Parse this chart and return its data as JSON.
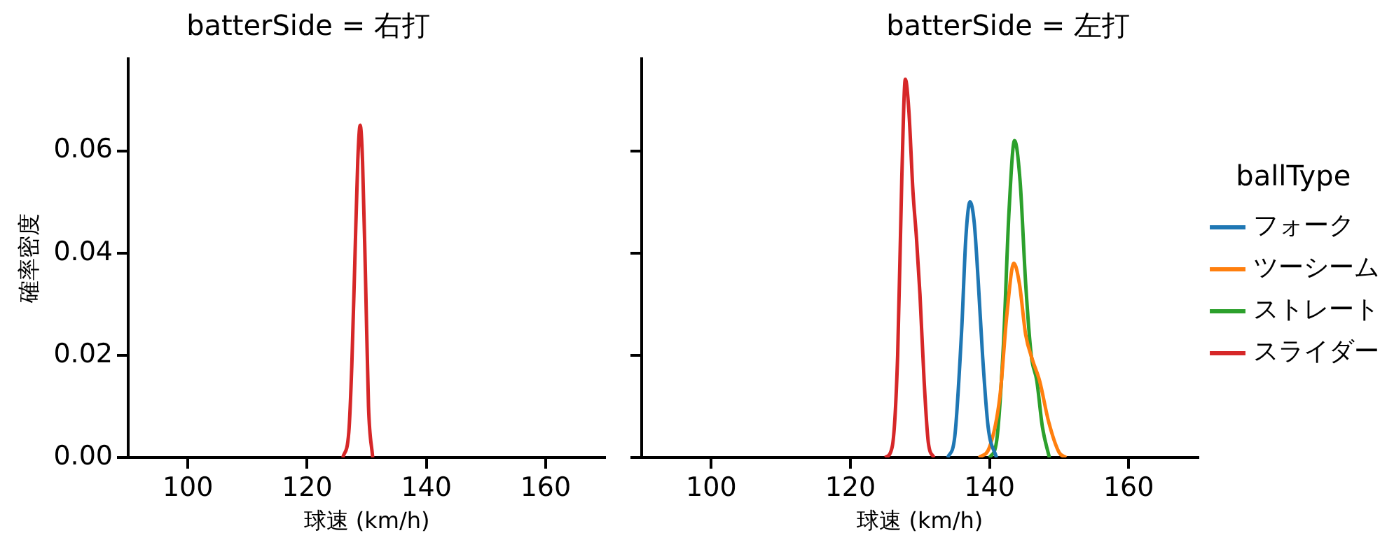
{
  "chart_data": [
    {
      "type": "line",
      "title": "batterSide = 右打",
      "xlabel": "球速 (km/h)",
      "ylabel": "確率密度",
      "xlim": [
        90,
        170
      ],
      "xticks": [
        100,
        120,
        140,
        160
      ],
      "ylim": [
        0,
        0.078
      ],
      "yticks": [
        {
          "value": 0,
          "label": "0.00"
        },
        {
          "value": 0.02,
          "label": "0.02"
        },
        {
          "value": 0.04,
          "label": "0.04"
        },
        {
          "value": 0.06,
          "label": "0.06"
        }
      ],
      "grid": false,
      "legend": false,
      "marker": "none",
      "series": [
        {
          "color": "#d62728",
          "x": [
            126,
            127,
            127.5,
            128,
            128.5,
            128.9,
            129.3,
            129.8,
            130.3,
            131
          ],
          "values": [
            0,
            0.005,
            0.018,
            0.038,
            0.058,
            0.065,
            0.058,
            0.035,
            0.01,
            0
          ]
        }
      ]
    },
    {
      "type": "line",
      "title": "batterSide = 左打",
      "xlabel": "球速 (km/h)",
      "legend_title": "ballType",
      "xlim": [
        90,
        170
      ],
      "xticks": [
        100,
        120,
        140,
        160
      ],
      "ylim": [
        0,
        0.078
      ],
      "yticks": [
        {
          "value": 0,
          "label": null
        },
        {
          "value": 0.02,
          "label": null
        },
        {
          "value": 0.04,
          "label": null
        },
        {
          "value": 0.06,
          "label": null
        }
      ],
      "tick_labels": "x",
      "grid": false,
      "legend": "right",
      "marker": "none",
      "series": [
        {
          "name": "フォーク",
          "color": "#1f77b4",
          "x": [
            134,
            135,
            136,
            136.6,
            137.2,
            137.8,
            138.4,
            139,
            139.8,
            141
          ],
          "values": [
            0,
            0.004,
            0.025,
            0.043,
            0.05,
            0.046,
            0.034,
            0.02,
            0.006,
            0
          ]
        },
        {
          "name": "ツーシーム",
          "color": "#ff7f0e",
          "x": [
            138.5,
            140,
            141.5,
            142.5,
            143.5,
            144.3,
            145.2,
            146.2,
            147.2,
            148.5,
            150,
            151
          ],
          "values": [
            0,
            0.002,
            0.012,
            0.028,
            0.038,
            0.034,
            0.024,
            0.019,
            0.015,
            0.007,
            0.001,
            0
          ]
        },
        {
          "name": "ストレート",
          "color": "#2ca02c",
          "x": [
            140,
            141,
            142,
            142.8,
            143.6,
            144.4,
            145.2,
            146,
            146.8,
            147.6,
            148.6
          ],
          "values": [
            0,
            0.003,
            0.022,
            0.048,
            0.062,
            0.054,
            0.034,
            0.02,
            0.015,
            0.006,
            0
          ]
        },
        {
          "name": "スライダー",
          "color": "#d62728",
          "x": [
            125,
            126,
            126.8,
            127.4,
            127.9,
            128.4,
            129,
            129.5,
            130,
            130.6,
            131.2,
            132
          ],
          "values": [
            0,
            0.002,
            0.02,
            0.055,
            0.074,
            0.068,
            0.052,
            0.043,
            0.032,
            0.015,
            0.003,
            0
          ]
        }
      ]
    }
  ]
}
